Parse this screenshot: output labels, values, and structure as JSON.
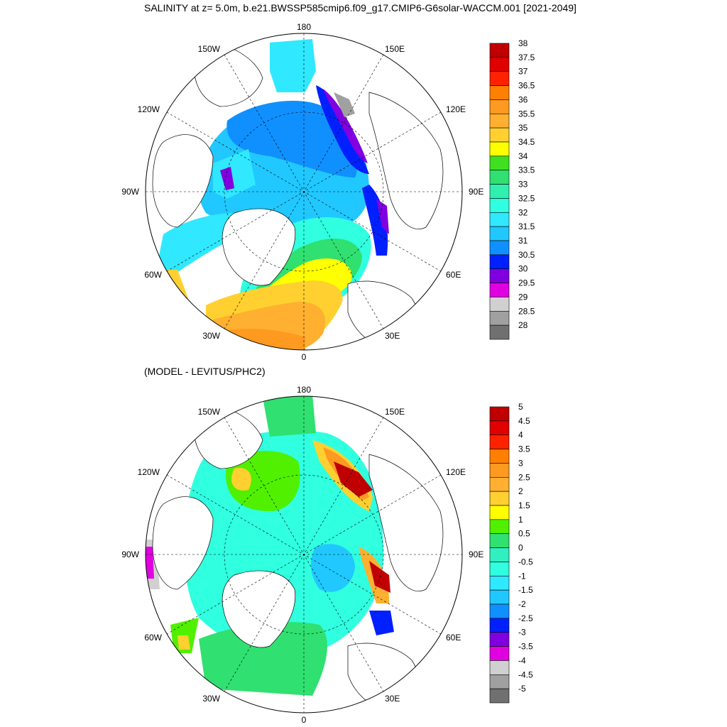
{
  "title": "SALINITY at z=   5.0m, b.e21.BWSSP585cmip6.f09_g17.CMIP6-G6solar-WACCM.001 [2021-2049]",
  "subtitle": "(MODEL - LEVITUS/PHC2)",
  "longitude_labels": {
    "top": "180",
    "bottom": "0",
    "left": "90W",
    "right": "90E",
    "upper_left_1": "150W",
    "upper_left_2": "120W",
    "lower_left_1": "60W",
    "lower_left_2": "30W",
    "upper_right_1": "150E",
    "upper_right_2": "120E",
    "lower_right_1": "60E",
    "lower_right_2": "30E"
  },
  "top_colorbar": {
    "levels": [
      "38",
      "37.5",
      "37",
      "36.5",
      "36",
      "35.5",
      "35",
      "34.5",
      "34",
      "33.5",
      "33",
      "32.5",
      "32",
      "31.5",
      "31",
      "30.5",
      "30",
      "29.5",
      "29",
      "28.5",
      "28"
    ],
    "colors": [
      "#c00000",
      "#e00000",
      "#ff2200",
      "#ff8000",
      "#ff9a20",
      "#ffb030",
      "#ffd030",
      "#ffff00",
      "#40e020",
      "#30e070",
      "#30f0b0",
      "#30ffe0",
      "#30e8ff",
      "#20c8ff",
      "#1090ff",
      "#0020ff",
      "#8000e0",
      "#e000e0",
      "#d0d0d0",
      "#a0a0a0",
      "#707070"
    ]
  },
  "bottom_colorbar": {
    "levels": [
      "5",
      "4.5",
      "4",
      "3.5",
      "3",
      "2.5",
      "2",
      "1.5",
      "1",
      "0.5",
      "0",
      "-0.5",
      "-1",
      "-1.5",
      "-2",
      "-2.5",
      "-3",
      "-3.5",
      "-4",
      "-4.5",
      "-5"
    ],
    "colors": [
      "#c00000",
      "#e00000",
      "#ff2200",
      "#ff8000",
      "#ff9a20",
      "#ffb030",
      "#ffd030",
      "#ffff00",
      "#50f000",
      "#30e070",
      "#30f0c0",
      "#30ffe0",
      "#30e8ff",
      "#20c8ff",
      "#1090ff",
      "#0020ff",
      "#8000e0",
      "#e000e0",
      "#d0d0d0",
      "#a0a0a0",
      "#707070"
    ]
  }
}
